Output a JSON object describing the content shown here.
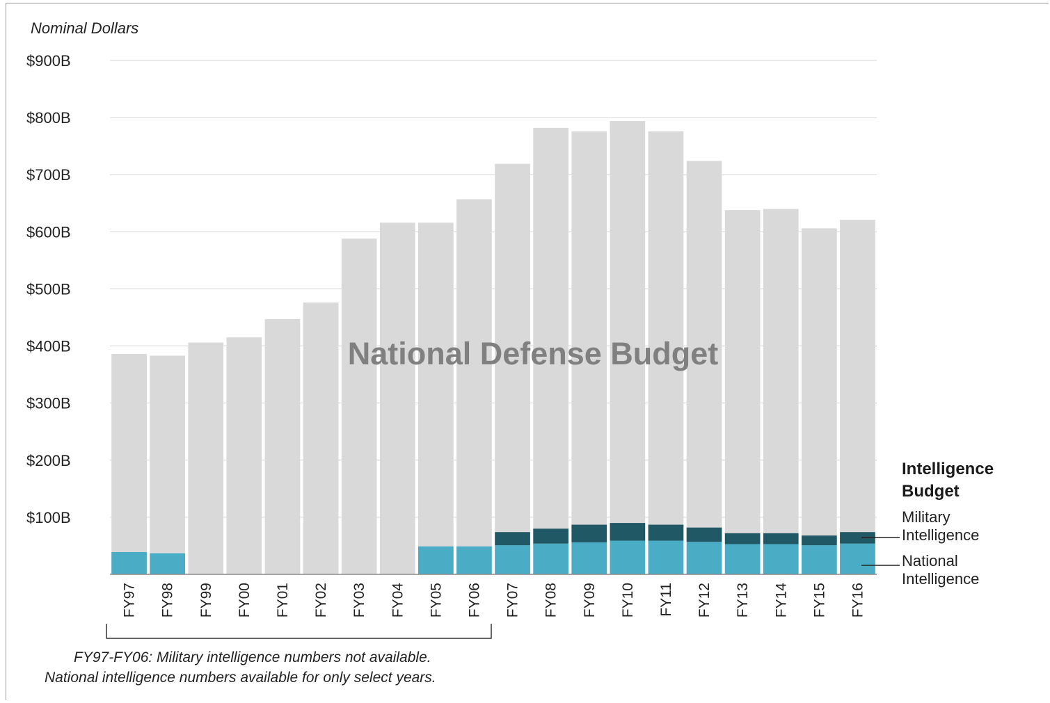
{
  "chart_data": {
    "type": "bar",
    "stacked": true,
    "unit_label": "Nominal Dollars",
    "watermark_label": "National Defense Budget",
    "categories": [
      "FY97",
      "FY98",
      "FY99",
      "FY00",
      "FY01",
      "FY02",
      "FY03",
      "FY04",
      "FY05",
      "FY06",
      "FY07",
      "FY08",
      "FY09",
      "FY10",
      "FY11",
      "FY12",
      "FY13",
      "FY14",
      "FY15",
      "FY16"
    ],
    "ylim": [
      0,
      900
    ],
    "yticks": [
      {
        "value": 100,
        "label": "$100B"
      },
      {
        "value": 200,
        "label": "$200B"
      },
      {
        "value": 300,
        "label": "$300B"
      },
      {
        "value": 400,
        "label": "$400B"
      },
      {
        "value": 500,
        "label": "$500B"
      },
      {
        "value": 600,
        "label": "$600B"
      },
      {
        "value": 700,
        "label": "$700B"
      },
      {
        "value": 800,
        "label": "$800B"
      },
      {
        "value": 900,
        "label": "$900B"
      }
    ],
    "grid": true,
    "series": [
      {
        "key": "defense",
        "values": [
          386,
          383,
          406,
          415,
          447,
          476,
          588,
          616,
          616,
          657,
          719,
          782,
          776,
          794,
          776,
          724,
          638,
          640,
          606,
          621
        ],
        "color": "#d9d9d9"
      },
      {
        "key": "national",
        "name": "National Intelligence",
        "values": [
          39,
          37,
          null,
          null,
          null,
          null,
          null,
          null,
          49,
          49,
          51,
          54,
          56,
          59,
          59,
          57,
          53,
          53,
          51,
          54
        ],
        "color": "#4bacc6"
      },
      {
        "key": "military",
        "name": "Military Intelligence",
        "values": [
          null,
          null,
          null,
          null,
          null,
          null,
          null,
          null,
          null,
          null,
          23,
          26,
          31,
          31,
          28,
          25,
          19,
          19,
          17,
          20
        ],
        "color": "#215866"
      }
    ],
    "legend": {
      "title_line1": "Intelligence",
      "title_line2": "Budget",
      "military_line1": "Military",
      "military_line2": "Intelligence",
      "national_line1": "National",
      "national_line2": "Intelligence",
      "placement": "right"
    },
    "note": {
      "line1": "FY97-FY06: Military intelligence numbers not available.",
      "line2": "National intelligence numbers available for only select years."
    }
  }
}
